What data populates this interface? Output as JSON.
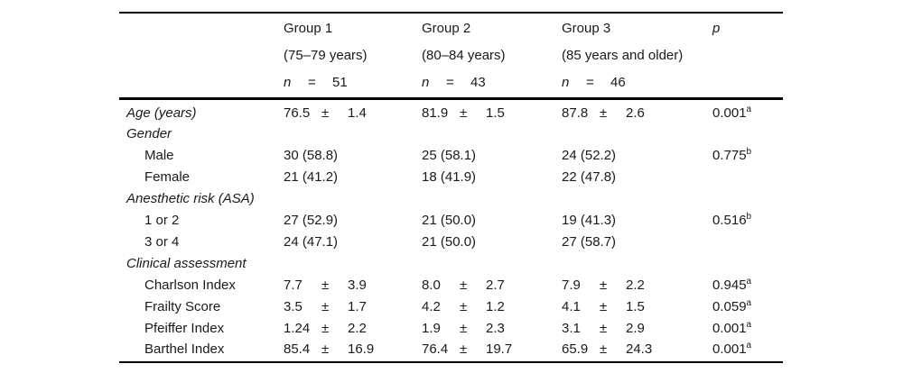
{
  "symbols": {
    "pm": "±",
    "eq": "="
  },
  "header": {
    "p_label": "p",
    "groups": [
      {
        "title": "Group 1",
        "range": "(75–79 years)",
        "n_label": "n",
        "n": "51"
      },
      {
        "title": "Group 2",
        "range": "(80–84 years)",
        "n_label": "n",
        "n": "43"
      },
      {
        "title": "Group 3",
        "range": "(85 years and older)",
        "n_label": "n",
        "n": "46"
      }
    ]
  },
  "rows": {
    "age": {
      "label": "Age (years)",
      "g1m": "76.5",
      "g1s": "1.4",
      "g2m": "81.9",
      "g2s": "1.5",
      "g3m": "87.8",
      "g3s": "2.6",
      "p": "0.001",
      "psup": "a"
    },
    "gender": {
      "label": "Gender"
    },
    "male": {
      "label": "Male",
      "g1": "30 (58.8)",
      "g2": "25 (58.1)",
      "g3": "24 (52.2)",
      "p": "0.775",
      "psup": "b"
    },
    "female": {
      "label": "Female",
      "g1": "21 (41.2)",
      "g2": "18 (41.9)",
      "g3": "22 (47.8)"
    },
    "asa": {
      "label": "Anesthetic risk (ASA)"
    },
    "asa12": {
      "label": "1 or 2",
      "g1": "27 (52.9)",
      "g2": "21 (50.0)",
      "g3": "19 (41.3)",
      "p": "0.516",
      "psup": "b"
    },
    "asa34": {
      "label": "3 or 4",
      "g1": "24 (47.1)",
      "g2": "21 (50.0)",
      "g3": "27 (58.7)"
    },
    "clinical": {
      "label": "Clinical assessment"
    },
    "charlson": {
      "label": "Charlson Index",
      "g1m": "7.7",
      "g1s": "3.9",
      "g2m": "8.0",
      "g2s": "2.7",
      "g3m": "7.9",
      "g3s": "2.2",
      "p": "0.945",
      "psup": "a"
    },
    "frailty": {
      "label": "Frailty Score",
      "g1m": "3.5",
      "g1s": "1.7",
      "g2m": "4.2",
      "g2s": "1.2",
      "g3m": "4.1",
      "g3s": "1.5",
      "p": "0.059",
      "psup": "a"
    },
    "pfeiffer": {
      "label": "Pfeiffer Index",
      "g1m": "1.24",
      "g1s": "2.2",
      "g2m": "1.9",
      "g2s": "2.3",
      "g3m": "3.1",
      "g3s": "2.9",
      "p": "0.001",
      "psup": "a"
    },
    "barthel": {
      "label": "Barthel Index",
      "g1m": "85.4",
      "g1s": "16.9",
      "g2m": "76.4",
      "g2s": "19.7",
      "g3m": "65.9",
      "g3s": "24.3",
      "p": "0.001",
      "psup": "a"
    }
  }
}
